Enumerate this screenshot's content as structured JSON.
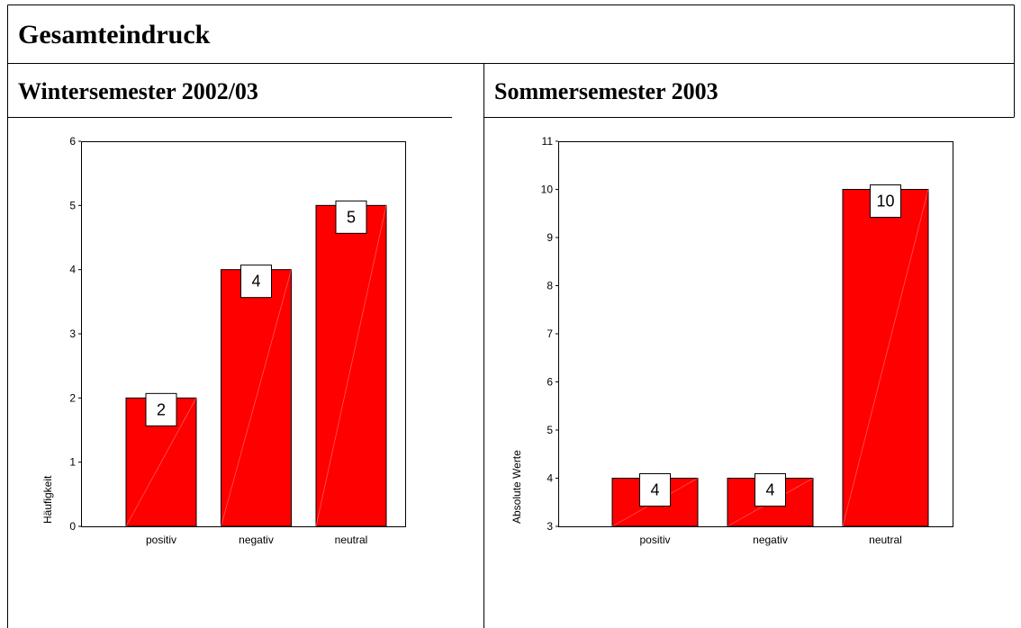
{
  "title": "Gesamteindruck",
  "chart_data": [
    {
      "type": "bar",
      "title": "Wintersemester 2002/03",
      "ylabel": "Häufigkeit",
      "categories": [
        "positiv",
        "negativ",
        "neutral"
      ],
      "values": [
        2,
        4,
        5
      ],
      "color": "#ff0000",
      "ylim": [
        0,
        6
      ],
      "yticks": [
        0,
        1,
        2,
        3,
        4,
        5,
        6
      ]
    },
    {
      "type": "bar",
      "title": "Sommersemester 2003",
      "ylabel": "Absolute Werte",
      "categories": [
        "positiv",
        "negativ",
        "neutral"
      ],
      "values": [
        4,
        4,
        10
      ],
      "color": "#ff0000",
      "ylim": [
        3,
        11
      ],
      "yticks": [
        3,
        4,
        5,
        6,
        7,
        8,
        9,
        10,
        11
      ]
    }
  ]
}
